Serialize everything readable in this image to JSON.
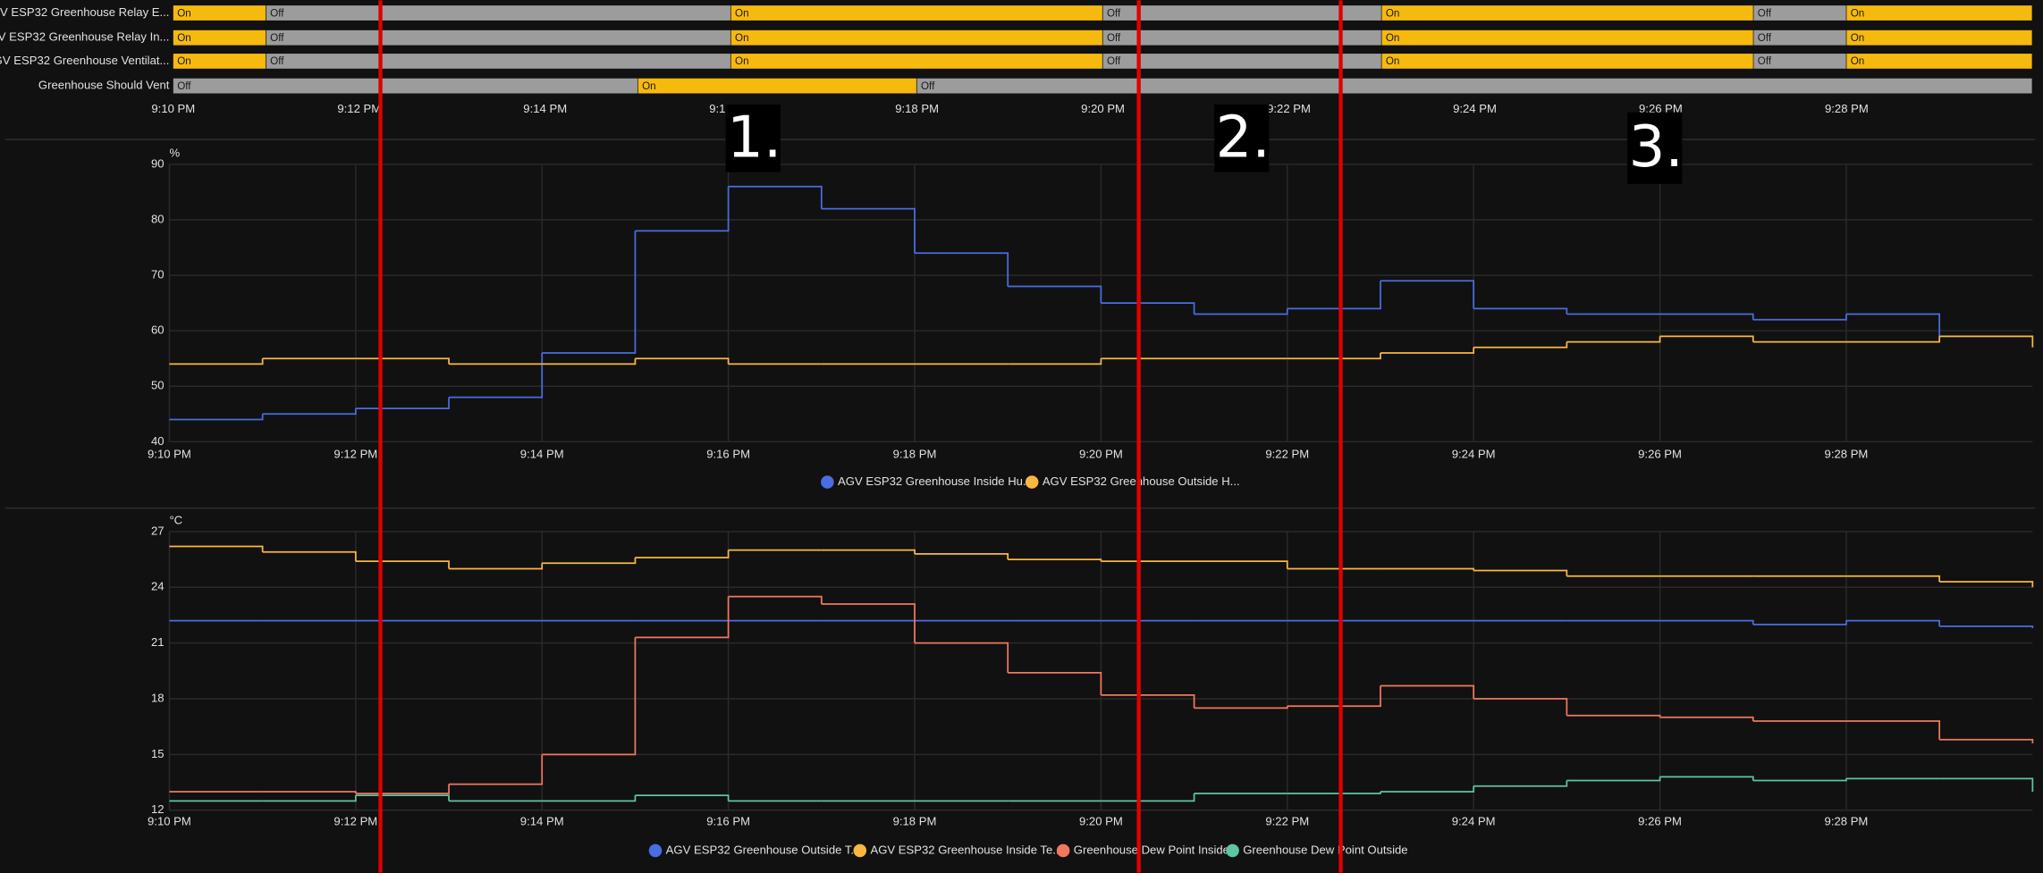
{
  "chart_data": [
    {
      "type": "timeline",
      "xlim": [
        "9:10 PM",
        "9:30 PM"
      ],
      "xticks": [
        "9:10 PM",
        "9:12 PM",
        "9:14 PM",
        "9:16 PM",
        "9:18 PM",
        "9:20 PM",
        "9:22 PM",
        "9:24 PM",
        "9:26 PM",
        "9:28 PM"
      ],
      "state_colors": {
        "On": "#f6b90d",
        "Off": "#9c9c9c"
      },
      "rows": [
        {
          "name": "AGV ESP32 Greenhouse Relay E...",
          "segments": [
            {
              "start": "9:10 PM",
              "end": "9:11 PM",
              "state": "On"
            },
            {
              "start": "9:11 PM",
              "end": "9:16 PM",
              "state": "Off"
            },
            {
              "start": "9:16 PM",
              "end": "9:20 PM",
              "state": "On"
            },
            {
              "start": "9:20 PM",
              "end": "9:23 PM",
              "state": "Off"
            },
            {
              "start": "9:23 PM",
              "end": "9:27 PM",
              "state": "On"
            },
            {
              "start": "9:27 PM",
              "end": "9:28 PM",
              "state": "Off"
            },
            {
              "start": "9:28 PM",
              "end": "9:30 PM",
              "state": "On"
            }
          ]
        },
        {
          "name": "AGV ESP32 Greenhouse Relay In...",
          "segments": [
            {
              "start": "9:10 PM",
              "end": "9:11 PM",
              "state": "On"
            },
            {
              "start": "9:11 PM",
              "end": "9:16 PM",
              "state": "Off"
            },
            {
              "start": "9:16 PM",
              "end": "9:20 PM",
              "state": "On"
            },
            {
              "start": "9:20 PM",
              "end": "9:23 PM",
              "state": "Off"
            },
            {
              "start": "9:23 PM",
              "end": "9:27 PM",
              "state": "On"
            },
            {
              "start": "9:27 PM",
              "end": "9:28 PM",
              "state": "Off"
            },
            {
              "start": "9:28 PM",
              "end": "9:30 PM",
              "state": "On"
            }
          ]
        },
        {
          "name": "AGV ESP32 Greenhouse Ventilat...",
          "segments": [
            {
              "start": "9:10 PM",
              "end": "9:11 PM",
              "state": "On"
            },
            {
              "start": "9:11 PM",
              "end": "9:16 PM",
              "state": "Off"
            },
            {
              "start": "9:16 PM",
              "end": "9:20 PM",
              "state": "On"
            },
            {
              "start": "9:20 PM",
              "end": "9:23 PM",
              "state": "Off"
            },
            {
              "start": "9:23 PM",
              "end": "9:27 PM",
              "state": "On"
            },
            {
              "start": "9:27 PM",
              "end": "9:28 PM",
              "state": "Off"
            },
            {
              "start": "9:28 PM",
              "end": "9:30 PM",
              "state": "On"
            }
          ]
        },
        {
          "name": "Greenhouse Should Vent",
          "segments": [
            {
              "start": "9:10 PM",
              "end": "9:15 PM",
              "state": "Off"
            },
            {
              "start": "9:15 PM",
              "end": "9:18 PM",
              "state": "On"
            },
            {
              "start": "9:18 PM",
              "end": "9:30 PM",
              "state": "Off"
            }
          ]
        }
      ]
    },
    {
      "type": "line",
      "step": true,
      "unit": "%",
      "grid": true,
      "x": [
        "9:10 PM",
        "9:11 PM",
        "9:12 PM",
        "9:13 PM",
        "9:14 PM",
        "9:15 PM",
        "9:16 PM",
        "9:17 PM",
        "9:18 PM",
        "9:19 PM",
        "9:20 PM",
        "9:21 PM",
        "9:22 PM",
        "9:23 PM",
        "9:24 PM",
        "9:25 PM",
        "9:26 PM",
        "9:27 PM",
        "9:28 PM",
        "9:29 PM",
        "9:30 PM"
      ],
      "xlim": [
        "9:10 PM",
        "9:30 PM"
      ],
      "xticks": [
        "9:10 PM",
        "9:12 PM",
        "9:14 PM",
        "9:16 PM",
        "9:18 PM",
        "9:20 PM",
        "9:22 PM",
        "9:24 PM",
        "9:26 PM",
        "9:28 PM"
      ],
      "ylim": [
        40,
        90
      ],
      "yticks": [
        40,
        50,
        60,
        70,
        80,
        90
      ],
      "series": [
        {
          "name": "AGV ESP32 Greenhouse Inside Hu...",
          "color": "#4a6de0",
          "values": [
            44,
            45,
            46,
            48,
            56,
            78,
            86,
            82,
            74,
            68,
            65,
            63,
            64,
            69,
            64,
            63,
            63,
            62,
            63,
            59,
            59
          ]
        },
        {
          "name": "AGV ESP32 Greenhouse Outside H...",
          "color": "#f9b73f",
          "values": [
            54,
            55,
            55,
            54,
            54,
            55,
            54,
            54,
            54,
            54,
            55,
            55,
            55,
            56,
            57,
            58,
            59,
            58,
            58,
            59,
            57
          ]
        }
      ]
    },
    {
      "type": "line",
      "step": true,
      "unit": "°C",
      "grid": true,
      "x": [
        "9:10 PM",
        "9:11 PM",
        "9:12 PM",
        "9:13 PM",
        "9:14 PM",
        "9:15 PM",
        "9:16 PM",
        "9:17 PM",
        "9:18 PM",
        "9:19 PM",
        "9:20 PM",
        "9:21 PM",
        "9:22 PM",
        "9:23 PM",
        "9:24 PM",
        "9:25 PM",
        "9:26 PM",
        "9:27 PM",
        "9:28 PM",
        "9:29 PM",
        "9:30 PM"
      ],
      "xlim": [
        "9:10 PM",
        "9:30 PM"
      ],
      "xticks": [
        "9:10 PM",
        "9:12 PM",
        "9:14 PM",
        "9:16 PM",
        "9:18 PM",
        "9:20 PM",
        "9:22 PM",
        "9:24 PM",
        "9:26 PM",
        "9:28 PM"
      ],
      "ylim": [
        12,
        27
      ],
      "yticks": [
        12,
        15,
        18,
        21,
        24,
        27
      ],
      "series": [
        {
          "name": "AGV ESP32 Greenhouse Outside T...",
          "color": "#4a6de0",
          "values": [
            22.2,
            22.2,
            22.2,
            22.2,
            22.2,
            22.2,
            22.2,
            22.2,
            22.2,
            22.2,
            22.2,
            22.2,
            22.2,
            22.2,
            22.2,
            22.2,
            22.2,
            22.0,
            22.2,
            21.9,
            21.8
          ]
        },
        {
          "name": "AGV ESP32 Greenhouse Inside Te...",
          "color": "#f9b73f",
          "values": [
            26.2,
            25.9,
            25.4,
            25.0,
            25.3,
            25.6,
            26.0,
            26.0,
            25.8,
            25.5,
            25.4,
            25.4,
            25.0,
            25.0,
            24.9,
            24.6,
            24.6,
            24.6,
            24.6,
            24.3,
            24.0
          ]
        },
        {
          "name": "Greenhouse Dew Point Inside",
          "color": "#f0785f",
          "values": [
            13.0,
            13.0,
            12.9,
            13.4,
            15.0,
            21.3,
            23.5,
            23.1,
            21.0,
            19.4,
            18.2,
            17.5,
            17.6,
            18.7,
            18.0,
            17.1,
            17.0,
            16.8,
            16.8,
            15.8,
            15.6
          ]
        },
        {
          "name": "Greenhouse Dew Point Outside",
          "color": "#5ec4a6",
          "values": [
            12.5,
            12.5,
            12.8,
            12.5,
            12.5,
            12.8,
            12.5,
            12.5,
            12.5,
            12.5,
            12.5,
            12.9,
            12.9,
            13.0,
            13.3,
            13.6,
            13.8,
            13.6,
            13.7,
            13.7,
            13.0
          ]
        }
      ]
    }
  ],
  "annotations": [
    "1.",
    "2.",
    "3."
  ]
}
